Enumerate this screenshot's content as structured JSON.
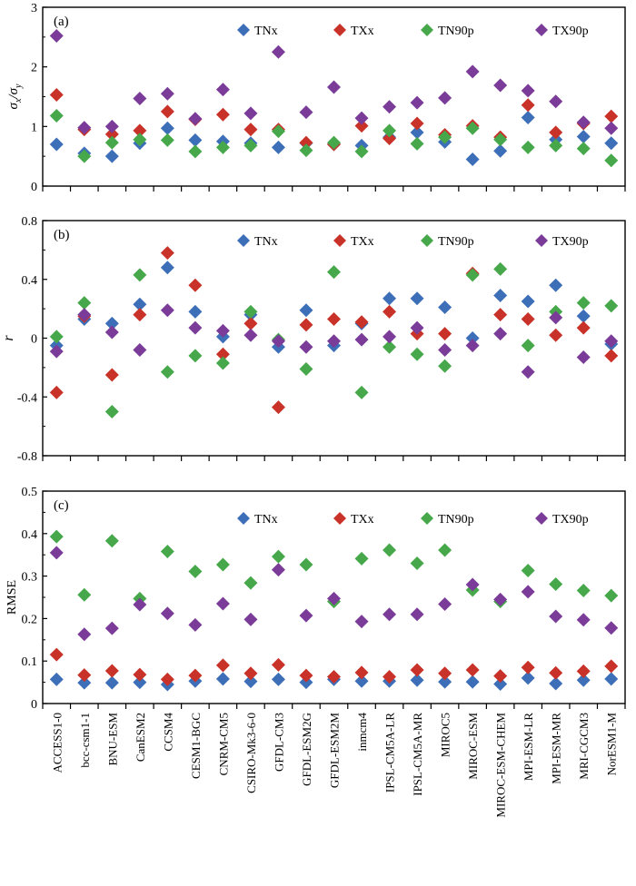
{
  "colors": {
    "TNx": "#3d6fb8",
    "TXx": "#c83228",
    "TN90p": "#46a84a",
    "TX90p": "#7a3c98",
    "axis": "#000000",
    "background": "#ffffff"
  },
  "chart_data": [
    {
      "type": "scatter",
      "panel": "(a)",
      "ylabel_main": "σ",
      "ylabel_sub_num": "x",
      "ylabel_sep": "/σ",
      "ylabel_sub_den": "y",
      "ylim": [
        0,
        3
      ],
      "yticks": [
        "0",
        "1",
        "2",
        "3"
      ],
      "ytick_values": [
        0,
        1,
        2,
        3
      ],
      "legend": [
        "TNx",
        "TXx",
        "TN90p",
        "TX90p"
      ],
      "categories": [
        "ACCESS1-0",
        "bcc-csm1-1",
        "BNU-ESM",
        "CanESM2",
        "CCSM4",
        "CESM1-BGC",
        "CNRM-CM5",
        "CSIRO-Mk3-6-0",
        "GFDL-CM3",
        "GFDL-ESM2G",
        "GFDL-ESM2M",
        "inmcm4",
        "IPSL-CM5A-LR",
        "IPSL-CM5A-MR",
        "MIROC5",
        "MIROC-ESM",
        "MIROC-ESM-CHEM",
        "MPI-ESM-LR",
        "MPI-ESM-MR",
        "MRI-CGCM3",
        "NorESM1-M"
      ],
      "series": [
        {
          "name": "TNx",
          "values": [
            0.7,
            0.55,
            0.5,
            0.72,
            0.97,
            0.77,
            0.75,
            0.72,
            0.65,
            0.72,
            0.7,
            0.68,
            0.82,
            0.9,
            0.74,
            0.45,
            0.59,
            1.15,
            0.78,
            0.83,
            0.72
          ]
        },
        {
          "name": "TXx",
          "values": [
            1.53,
            0.95,
            0.87,
            0.93,
            1.25,
            1.12,
            1.2,
            0.95,
            0.95,
            0.73,
            0.7,
            1.01,
            0.8,
            1.05,
            0.86,
            1.01,
            0.82,
            1.36,
            0.9,
            1.05,
            1.17
          ]
        },
        {
          "name": "TN90p",
          "values": [
            1.18,
            0.5,
            0.73,
            0.78,
            0.77,
            0.58,
            0.65,
            0.68,
            0.92,
            0.6,
            0.73,
            0.58,
            0.93,
            0.71,
            0.82,
            0.97,
            0.78,
            0.65,
            0.68,
            0.63,
            0.43
          ]
        },
        {
          "name": "TX90p",
          "values": [
            2.52,
            0.98,
            1.0,
            1.47,
            1.55,
            1.13,
            1.62,
            1.22,
            2.25,
            1.24,
            1.66,
            1.14,
            1.33,
            1.4,
            1.48,
            1.92,
            1.69,
            1.6,
            1.42,
            1.07,
            0.97
          ]
        }
      ]
    },
    {
      "type": "scatter",
      "panel": "(b)",
      "ylabel": "r",
      "ylim": [
        -0.8,
        0.8
      ],
      "yticks": [
        "-0.8",
        "-0.4",
        "0",
        "0.4",
        "0.8"
      ],
      "ytick_values": [
        -0.8,
        -0.4,
        0,
        0.4,
        0.8
      ],
      "legend": [
        "TNx",
        "TXx",
        "TN90p",
        "TX90p"
      ],
      "categories": [
        "ACCESS1-0",
        "bcc-csm1-1",
        "BNU-ESM",
        "CanESM2",
        "CCSM4",
        "CESM1-BGC",
        "CNRM-CM5",
        "CSIRO-Mk3-6-0",
        "GFDL-CM3",
        "GFDL-ESM2G",
        "GFDL-ESM2M",
        "inmcm4",
        "IPSL-CM5A-LR",
        "IPSL-CM5A-MR",
        "MIROC5",
        "MIROC-ESM",
        "MIROC-ESM-CHEM",
        "MPI-ESM-LR",
        "MPI-ESM-MR",
        "MRI-CGCM3",
        "NorESM1-M"
      ],
      "series": [
        {
          "name": "TNx",
          "values": [
            -0.05,
            0.13,
            0.1,
            0.23,
            0.48,
            0.18,
            0.01,
            0.16,
            -0.06,
            0.19,
            -0.05,
            0.1,
            0.27,
            0.27,
            0.21,
            0.0,
            0.29,
            0.25,
            0.36,
            0.15,
            -0.04
          ]
        },
        {
          "name": "TXx",
          "values": [
            -0.37,
            0.15,
            -0.25,
            0.16,
            0.58,
            0.36,
            -0.11,
            0.1,
            -0.47,
            0.09,
            0.13,
            0.11,
            0.18,
            0.03,
            0.03,
            0.44,
            0.16,
            0.13,
            0.02,
            0.07,
            -0.12
          ]
        },
        {
          "name": "TN90p",
          "values": [
            0.01,
            0.24,
            -0.5,
            0.43,
            -0.23,
            -0.12,
            -0.17,
            0.18,
            -0.01,
            -0.21,
            0.45,
            -0.37,
            -0.06,
            -0.11,
            -0.19,
            0.43,
            0.47,
            -0.05,
            0.18,
            0.24,
            0.22
          ]
        },
        {
          "name": "TX90p",
          "values": [
            -0.09,
            0.16,
            0.04,
            -0.08,
            0.19,
            0.07,
            0.05,
            0.02,
            -0.02,
            -0.06,
            -0.02,
            -0.01,
            0.01,
            0.07,
            -0.08,
            -0.05,
            0.03,
            -0.23,
            0.14,
            -0.13,
            -0.02
          ]
        }
      ]
    },
    {
      "type": "scatter",
      "panel": "(c)",
      "ylabel": "RMSE",
      "ylim": [
        0,
        0.5
      ],
      "yticks": [
        "0",
        "0.1",
        "0.2",
        "0.3",
        "0.4",
        "0.5"
      ],
      "ytick_values": [
        0,
        0.1,
        0.2,
        0.3,
        0.4,
        0.5
      ],
      "legend": [
        "TNx",
        "TXx",
        "TN90p",
        "TX90p"
      ],
      "categories": [
        "ACCESS1-0",
        "bcc-csm1-1",
        "BNU-ESM",
        "CanESM2",
        "CCSM4",
        "CESM1-BGC",
        "CNRM-CM5",
        "CSIRO-Mk3-6-0",
        "GFDL-CM3",
        "GFDL-ESM2G",
        "GFDL-ESM2M",
        "inmcm4",
        "IPSL-CM5A-LR",
        "IPSL-CM5A-MR",
        "MIROC5",
        "MIROC-ESM",
        "MIROC-ESM-CHEM",
        "MPI-ESM-LR",
        "MPI-ESM-MR",
        "MRI-CGCM3",
        "NorESM1-M"
      ],
      "series": [
        {
          "name": "TNx",
          "values": [
            0.057,
            0.049,
            0.049,
            0.05,
            0.045,
            0.053,
            0.058,
            0.052,
            0.057,
            0.05,
            0.057,
            0.053,
            0.053,
            0.055,
            0.051,
            0.051,
            0.046,
            0.06,
            0.047,
            0.055,
            0.058
          ]
        },
        {
          "name": "TXx",
          "values": [
            0.115,
            0.067,
            0.077,
            0.068,
            0.057,
            0.066,
            0.09,
            0.071,
            0.091,
            0.066,
            0.063,
            0.073,
            0.063,
            0.079,
            0.071,
            0.079,
            0.065,
            0.085,
            0.072,
            0.076,
            0.088
          ]
        },
        {
          "name": "TN90p",
          "values": [
            0.393,
            0.256,
            0.383,
            0.247,
            0.358,
            0.311,
            0.327,
            0.284,
            0.346,
            0.327,
            0.24,
            0.341,
            0.361,
            0.33,
            0.361,
            0.267,
            0.24,
            0.313,
            0.281,
            0.266,
            0.254
          ]
        },
        {
          "name": "TX90p",
          "values": [
            0.355,
            0.163,
            0.177,
            0.233,
            0.212,
            0.185,
            0.235,
            0.198,
            0.315,
            0.207,
            0.247,
            0.193,
            0.21,
            0.21,
            0.234,
            0.28,
            0.245,
            0.263,
            0.205,
            0.197,
            0.178
          ]
        }
      ]
    }
  ]
}
